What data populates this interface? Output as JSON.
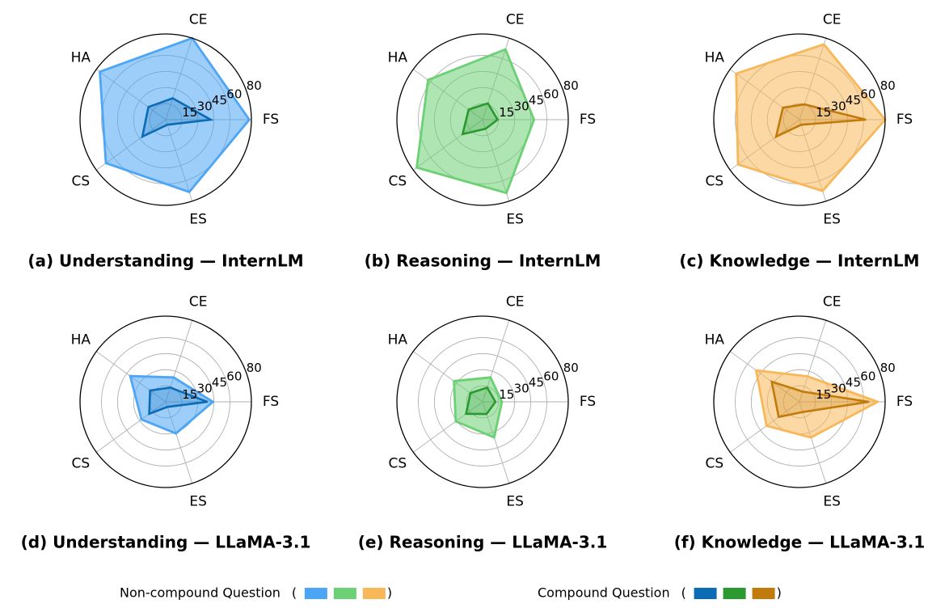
{
  "chart_data": {
    "type": "radar",
    "axes": [
      "FS",
      "CE",
      "HA",
      "CS",
      "ES"
    ],
    "rlim": [
      0,
      80
    ],
    "ticks": [
      15,
      30,
      45,
      60,
      80
    ],
    "tick_labels": [
      "15",
      "30",
      "45",
      "60",
      "80"
    ],
    "grid": true,
    "panels": [
      {
        "title": "(a) Understanding — InternLM",
        "series": [
          {
            "name": "Non-compound Question",
            "values": [
              78,
              80,
              76,
              69,
              71
            ]
          },
          {
            "name": "Compound Question",
            "values": [
              42,
              21,
              20,
              27,
              5
            ]
          }
        ]
      },
      {
        "title": "(b) Reasoning — InternLM",
        "series": [
          {
            "name": "Non-compound Question",
            "values": [
              48,
              69,
              63,
              76,
              72
            ]
          },
          {
            "name": "Compound Question",
            "values": [
              14,
              16,
              16,
              23,
              9
            ]
          }
        ]
      },
      {
        "title": "(c) Knowledge — InternLM",
        "series": [
          {
            "name": "Non-compound Question",
            "values": [
              80,
              74,
              73,
              71,
              70
            ]
          },
          {
            "name": "Compound Question",
            "values": [
              62,
              15,
              19,
              27,
              5
            ]
          }
        ]
      },
      {
        "title": "(d) Understanding — LLaMA-3.1",
        "series": [
          {
            "name": "Non-compound Question",
            "values": [
              44,
              24,
              41,
              28,
              31
            ]
          },
          {
            "name": "Compound Question",
            "values": [
              39,
              14,
              18,
              19,
              5
            ]
          }
        ]
      },
      {
        "title": "(e) Reasoning — LLaMA-3.1",
        "series": [
          {
            "name": "Non-compound Question",
            "values": [
              18,
              24,
              33,
              31,
              35
            ]
          },
          {
            "name": "Compound Question",
            "values": [
              12,
              14,
              14,
              19,
              12
            ]
          }
        ]
      },
      {
        "title": "(f) Knowledge — LLaMA-3.1",
        "series": [
          {
            "name": "Non-compound Question",
            "values": [
              73,
              25,
              50,
              38,
              35
            ]
          },
          {
            "name": "Compound Question",
            "values": [
              65,
              10,
              32,
              24,
              10
            ]
          }
        ]
      }
    ],
    "panel_colors": [
      {
        "fill": "#4da6f5",
        "dark": "#0b6bb5"
      },
      {
        "fill": "#6cd074",
        "dark": "#2a9a30"
      },
      {
        "fill": "#f8b85a",
        "dark": "#c27a0a"
      },
      {
        "fill": "#4da6f5",
        "dark": "#0b6bb5"
      },
      {
        "fill": "#6cd074",
        "dark": "#2a9a30"
      },
      {
        "fill": "#f8b85a",
        "dark": "#c27a0a"
      }
    ],
    "legend": {
      "noncompound_label": "Non-compound Question",
      "compound_label": "Compound Question",
      "open_paren": "(",
      "close_paren": ")",
      "noncompound_colors": [
        "#4da6f5",
        "#6cd074",
        "#f8b85a"
      ],
      "compound_colors": [
        "#0b6bb5",
        "#2a9a30",
        "#c27a0a"
      ]
    }
  }
}
